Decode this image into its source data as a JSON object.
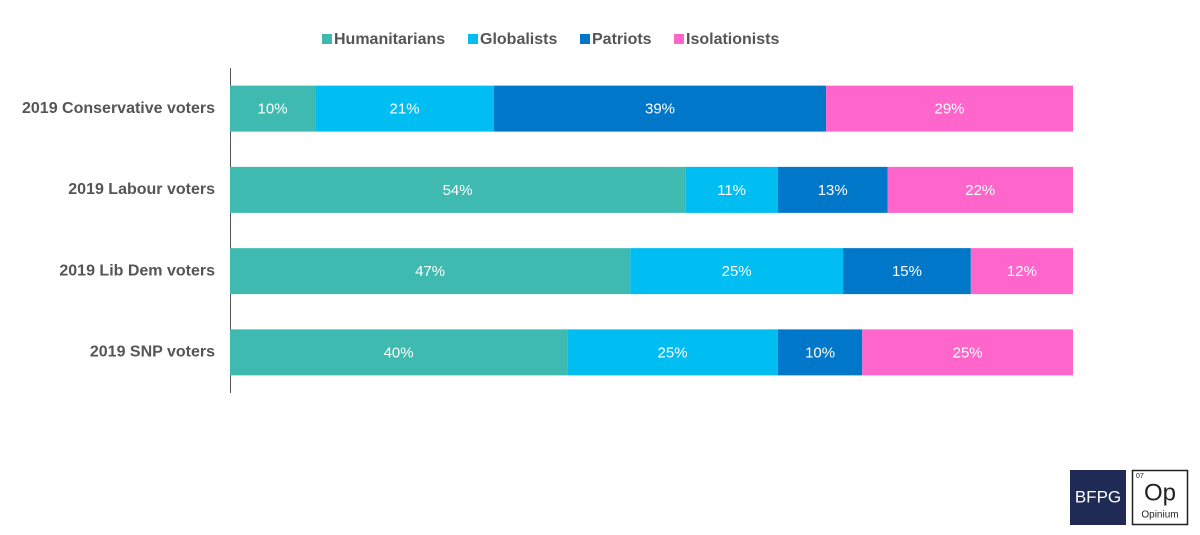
{
  "chart_data": {
    "type": "bar",
    "orientation": "horizontal",
    "stacking": "percent",
    "categories": [
      "2019 Conservative voters",
      "2019 Labour voters",
      "2019 Lib Dem voters",
      "2019 SNP voters"
    ],
    "series": [
      {
        "name": "Humanitarians",
        "color": "#3fbab0",
        "values": [
          10,
          54,
          47,
          40
        ],
        "value_labels": [
          "10%",
          "54%",
          "47%",
          "40%"
        ]
      },
      {
        "name": "Globalists",
        "color": "#00bdf2",
        "values": [
          21,
          11,
          25,
          25
        ],
        "value_labels": [
          "21%",
          "11%",
          "25%",
          "25%"
        ]
      },
      {
        "name": "Patriots",
        "color": "#0077c8",
        "values": [
          39,
          13,
          15,
          10
        ],
        "value_labels": [
          "39%",
          "13%",
          "15%",
          "10%"
        ]
      },
      {
        "name": "Isolationists",
        "color": "#ff66cc",
        "values": [
          29,
          22,
          12,
          25
        ],
        "value_labels": [
          "29%",
          "22%",
          "12%",
          "25%"
        ]
      }
    ],
    "legend": "top"
  },
  "logos": {
    "bfpg": "BFPG",
    "opinium_number": "07",
    "opinium_symbol": "Op",
    "opinium_name": "Opinium"
  }
}
